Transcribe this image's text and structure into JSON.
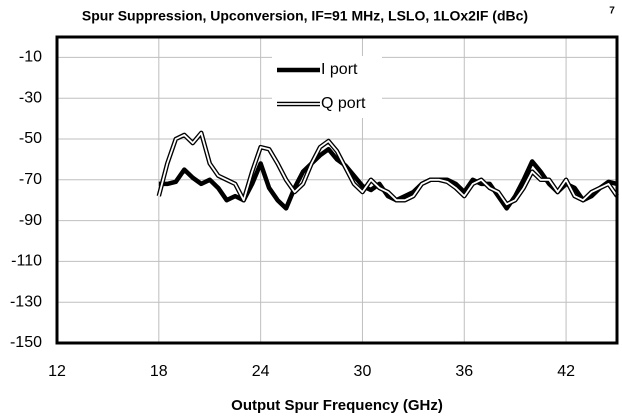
{
  "chart_data": {
    "type": "line",
    "title": "Spur Suppression,  Upconversion, IF=91 MHz, LSLO, 1LOx2IF (dBc)",
    "title_superscript": "7",
    "x_label": "Output Spur Frequency (GHz)",
    "x": [
      18,
      18.5,
      19,
      19.5,
      20,
      20.5,
      21,
      21.5,
      22,
      22.5,
      23,
      23.5,
      24,
      24.5,
      25,
      25.5,
      26,
      26.5,
      27,
      27.5,
      28,
      28.5,
      29,
      29.5,
      30,
      30.5,
      31,
      31.5,
      32,
      32.5,
      33,
      33.5,
      34,
      34.5,
      35,
      35.5,
      36,
      36.5,
      37,
      37.5,
      38,
      38.5,
      39,
      39.5,
      40,
      40.5,
      41,
      41.5,
      42,
      42.5,
      43,
      43.5,
      44,
      44.5,
      45
    ],
    "series": [
      {
        "name": "I port",
        "color": "#000000",
        "values": [
          -72,
          -72,
          -71,
          -65,
          -69,
          -72,
          -70,
          -74,
          -80,
          -78,
          -80,
          -72,
          -62,
          -74,
          -80,
          -84,
          -74,
          -66,
          -62,
          -58,
          -55,
          -60,
          -63,
          -68,
          -73,
          -75,
          -72,
          -78,
          -80,
          -78,
          -76,
          -72,
          -70,
          -70,
          -70,
          -72,
          -76,
          -70,
          -72,
          -72,
          -78,
          -84,
          -78,
          -70,
          -61,
          -66,
          -72,
          -76,
          -72,
          -74,
          -80,
          -78,
          -74,
          -71,
          -72
        ]
      },
      {
        "name": "Q port",
        "color": "#ffffff",
        "values": [
          -78,
          -62,
          -50,
          -48,
          -52,
          -47,
          -62,
          -68,
          -70,
          -72,
          -80,
          -66,
          -54,
          -55,
          -62,
          -70,
          -76,
          -72,
          -62,
          -54,
          -51,
          -56,
          -64,
          -72,
          -76,
          -70,
          -74,
          -76,
          -80,
          -80,
          -78,
          -72,
          -70,
          -70,
          -71,
          -74,
          -78,
          -72,
          -70,
          -74,
          -76,
          -82,
          -80,
          -74,
          -66,
          -70,
          -70,
          -76,
          -70,
          -78,
          -80,
          -76,
          -74,
          -72,
          -78
        ]
      }
    ],
    "xlim": [
      12,
      45
    ],
    "xticks": [
      12,
      18,
      24,
      30,
      36,
      42
    ],
    "ylim": [
      -150,
      0
    ],
    "yticks": [
      -150,
      -130,
      -110,
      -90,
      -70,
      -50,
      -30,
      -10
    ],
    "grid": true
  }
}
